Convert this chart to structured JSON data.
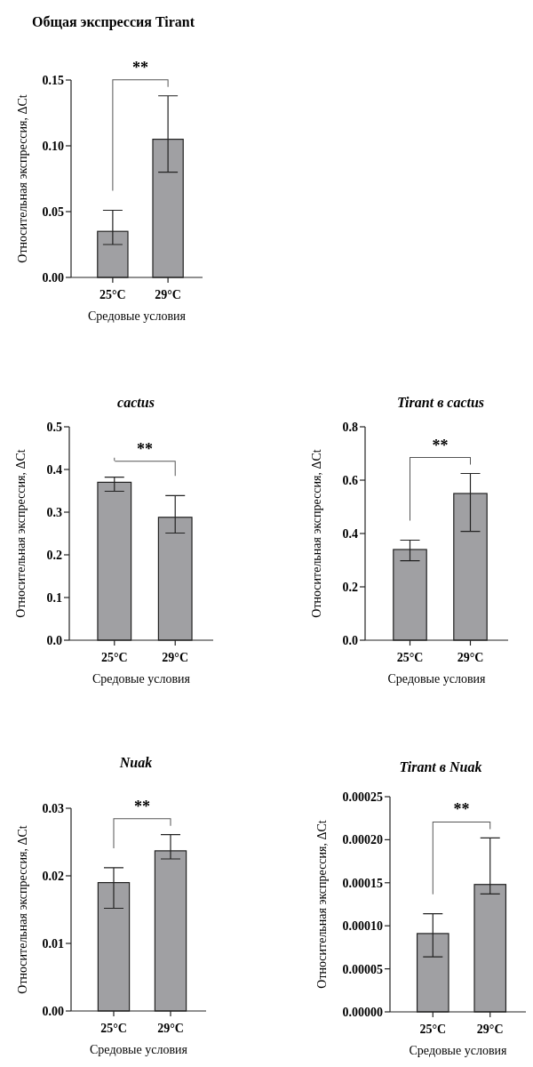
{
  "chart_data": [
    {
      "type": "bar",
      "title": "Общая экспрессия Tirant",
      "xlabel": "Средовые условия",
      "ylabel": "Относительная экспрессия, ΔCt",
      "categories": [
        "25°C",
        "29°C"
      ],
      "values": [
        0.035,
        0.105
      ],
      "errors": [
        [
          0.025,
          0.051
        ],
        [
          0.08,
          0.138
        ]
      ],
      "color": "#a0a0a3",
      "ylim": [
        0,
        0.15
      ],
      "yticks": [
        {
          "value": 0,
          "label": "0.00"
        },
        0.05,
        {
          "value": 0.1,
          "label": "0.10"
        },
        0.15
      ],
      "annotations": [
        "**"
      ]
    },
    {
      "type": "bar",
      "title": "cactus",
      "xlabel": "Средовые условия",
      "ylabel": "Относительная экспрессия, ΔCt",
      "categories": [
        "25°C",
        "29°C"
      ],
      "values": [
        0.37,
        0.288
      ],
      "errors": [
        [
          0.349,
          0.382
        ],
        [
          0.251,
          0.339
        ]
      ],
      "color": "#a0a0a3",
      "ylim": [
        0,
        0.5
      ],
      "yticks": [
        {
          "value": 0,
          "label": "0.0"
        },
        0.1,
        0.2,
        0.3,
        0.4,
        0.5
      ],
      "annotations": [
        "**"
      ]
    },
    {
      "type": "bar",
      "title": "Tirant в cactus",
      "xlabel": "Средовые условия",
      "ylabel": "Относительная экспрессия, ΔCt",
      "categories": [
        "25°C",
        "29°C"
      ],
      "values": [
        0.34,
        0.55
      ],
      "errors": [
        [
          0.298,
          0.375
        ],
        [
          0.408,
          0.625
        ]
      ],
      "color": "#a0a0a3",
      "ylim": [
        0,
        0.8
      ],
      "yticks": [
        {
          "value": 0,
          "label": "0.0"
        },
        0.2,
        0.4,
        0.6,
        0.8
      ],
      "annotations": [
        "**"
      ]
    },
    {
      "type": "bar",
      "title": "Nuak",
      "xlabel": "Средовые условия",
      "ylabel": "Относительная экспрессия, ΔCt",
      "categories": [
        "25°C",
        "29°C"
      ],
      "values": [
        0.019,
        0.0237
      ],
      "errors": [
        [
          0.0152,
          0.0212
        ],
        [
          0.0225,
          0.0261
        ]
      ],
      "color": "#a0a0a3",
      "ylim": [
        0,
        0.03
      ],
      "yticks": [
        {
          "value": 0,
          "label": "0.00"
        },
        0.01,
        0.02,
        0.03
      ],
      "annotations": [
        "**"
      ]
    },
    {
      "type": "bar",
      "title": "Tirant в Nuak",
      "xlabel": "Средовые условия",
      "ylabel": "Относительная экспрессия, ΔCt",
      "categories": [
        "25°C",
        "29°C"
      ],
      "values": [
        9.1e-05,
        0.000148
      ],
      "errors": [
        [
          6.4e-05,
          0.000114
        ],
        [
          0.000137,
          0.000202
        ]
      ],
      "color": "#a0a0a3",
      "ylim": [
        0,
        0.00025
      ],
      "yticks": [
        {
          "value": 0,
          "label": "0.00000"
        },
        {
          "value": 5e-05,
          "label": "0.00005"
        },
        {
          "value": 0.0001,
          "label": "0.00010"
        },
        {
          "value": 0.00015,
          "label": "0.00015"
        },
        {
          "value": 0.0002,
          "label": "0.00020"
        },
        {
          "value": 0.00025,
          "label": "0.00025"
        }
      ],
      "annotations": [
        "**"
      ]
    }
  ]
}
